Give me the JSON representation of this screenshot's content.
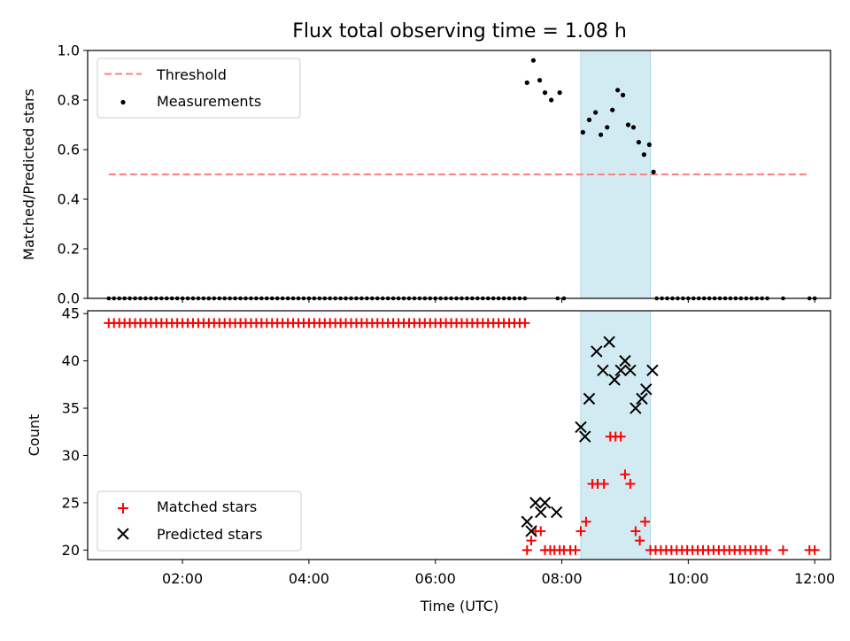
{
  "chart_data": {
    "type": "scatter",
    "title": "Flux total observing time = 1.08 h",
    "highlight_band": {
      "x_start": "08:18",
      "x_end": "09:24",
      "color": "#add8e6"
    },
    "x_axis": {
      "label": "Time (UTC)",
      "range": [
        "00:30",
        "12:15"
      ],
      "ticks": [
        "02:00",
        "04:00",
        "06:00",
        "08:00",
        "10:00",
        "12:00"
      ]
    },
    "panels": [
      {
        "ylabel": "Matched/Predicted stars",
        "ylim": [
          0.0,
          1.0
        ],
        "yticks": [
          "0.0",
          "0.2",
          "0.4",
          "0.6",
          "0.8",
          "1.0"
        ],
        "legend": {
          "position": "upper-left",
          "entries": [
            "Threshold",
            "Measurements"
          ]
        },
        "series": [
          {
            "name": "Threshold",
            "kind": "dashed-line",
            "color": "#ff7f7f",
            "x": [
              "00:50",
              "11:55"
            ],
            "y": [
              0.5,
              0.5
            ]
          },
          {
            "name": "Measurements",
            "kind": "dots",
            "color": "#000000",
            "points": [
              [
                "07:27",
                0.87
              ],
              [
                "07:33",
                0.96
              ],
              [
                "07:39",
                0.88
              ],
              [
                "07:44",
                0.83
              ],
              [
                "07:50",
                0.8
              ],
              [
                "07:58",
                0.83
              ],
              [
                "08:20",
                0.67
              ],
              [
                "08:26",
                0.72
              ],
              [
                "08:32",
                0.75
              ],
              [
                "08:37",
                0.66
              ],
              [
                "08:43",
                0.69
              ],
              [
                "08:48",
                0.76
              ],
              [
                "08:53",
                0.84
              ],
              [
                "08:58",
                0.82
              ],
              [
                "09:03",
                0.7
              ],
              [
                "09:08",
                0.69
              ],
              [
                "09:13",
                0.63
              ],
              [
                "09:18",
                0.58
              ],
              [
                "09:23",
                0.62
              ],
              [
                "09:27",
                0.51
              ]
            ],
            "zero_points": {
              "ranges": [
                [
                  "00:50",
                  "07:25"
                ],
                [
                  "09:30",
                  "11:15"
                ]
              ],
              "step_minutes": 5,
              "extra": [
                "07:56",
                "08:02",
                "11:30",
                "11:55",
                "12:00"
              ]
            }
          }
        ]
      },
      {
        "ylabel": "Count",
        "ylim": [
          19,
          45.3
        ],
        "yticks": [
          "20",
          "25",
          "30",
          "35",
          "40",
          "45"
        ],
        "legend": {
          "position": "lower-left",
          "entries": [
            "Matched stars",
            "Predicted stars"
          ]
        },
        "series": [
          {
            "name": "Matched stars",
            "kind": "plus",
            "color": "#ff0000",
            "points": [
              [
                "07:27",
                20
              ],
              [
                "07:31",
                21
              ],
              [
                "07:35",
                22
              ],
              [
                "07:40",
                22
              ],
              [
                "07:44",
                20
              ],
              [
                "07:49",
                20
              ],
              [
                "07:53",
                20
              ],
              [
                "07:58",
                20
              ],
              [
                "08:02",
                20
              ],
              [
                "08:08",
                20
              ],
              [
                "08:13",
                20
              ],
              [
                "08:18",
                22
              ],
              [
                "08:23",
                23
              ],
              [
                "08:29",
                27
              ],
              [
                "08:34",
                27
              ],
              [
                "08:40",
                27
              ],
              [
                "08:46",
                32
              ],
              [
                "08:51",
                32
              ],
              [
                "08:56",
                32
              ],
              [
                "09:00",
                28
              ],
              [
                "09:05",
                27
              ],
              [
                "09:10",
                22
              ],
              [
                "09:14",
                21
              ],
              [
                "09:19",
                23
              ]
            ],
            "constant_runs": [
              {
                "from": "00:50",
                "to": "07:25",
                "step_minutes": 5,
                "value": 44
              },
              {
                "from": "09:24",
                "to": "11:15",
                "step_minutes": 5,
                "value": 20
              }
            ],
            "extra_points": [
              [
                "11:30",
                20
              ],
              [
                "11:55",
                20
              ],
              [
                "12:00",
                20
              ]
            ]
          },
          {
            "name": "Predicted stars",
            "kind": "cross",
            "color": "#000000",
            "points": [
              [
                "07:27",
                23
              ],
              [
                "07:31",
                22
              ],
              [
                "07:35",
                25
              ],
              [
                "07:40",
                24
              ],
              [
                "07:44",
                25
              ],
              [
                "07:55",
                24
              ],
              [
                "08:18",
                33
              ],
              [
                "08:22",
                32
              ],
              [
                "08:26",
                36
              ],
              [
                "08:33",
                41
              ],
              [
                "08:39",
                39
              ],
              [
                "08:45",
                42
              ],
              [
                "08:50",
                38
              ],
              [
                "08:56",
                39
              ],
              [
                "09:00",
                40
              ],
              [
                "09:05",
                39
              ],
              [
                "09:10",
                35
              ],
              [
                "09:16",
                36
              ],
              [
                "09:20",
                37
              ],
              [
                "09:26",
                39
              ]
            ]
          }
        ]
      }
    ]
  }
}
